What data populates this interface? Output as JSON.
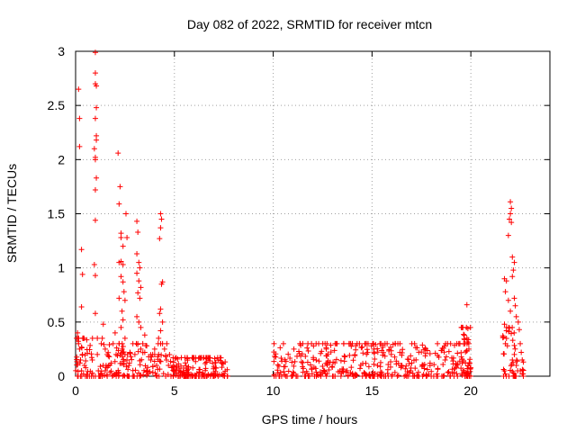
{
  "chart_data": {
    "type": "scatter",
    "title": "Day 082 of 2022, SRMTID for receiver mtcn",
    "xlabel": "GPS time / hours",
    "ylabel": "SRMTID / TECUs",
    "xlim": [
      0,
      24
    ],
    "ylim": [
      0,
      3
    ],
    "xticks": [
      0,
      5,
      10,
      15,
      20
    ],
    "xtick_labels": [
      "0",
      "5",
      "10",
      "15",
      "20"
    ],
    "yticks": [
      0,
      0.5,
      1,
      1.5,
      2,
      2.5,
      3
    ],
    "ytick_labels": [
      "0",
      "0.5",
      "1",
      "1.5",
      "2",
      "2.5",
      "3"
    ],
    "grid": true,
    "marker": "+",
    "series": [
      {
        "name": "SRMTID",
        "color": "#ff0000",
        "points": [
          [
            0.05,
            0.35
          ],
          [
            0.1,
            0.4
          ],
          [
            0.15,
            0.3
          ],
          [
            0.2,
            0.25
          ],
          [
            0.15,
            2.65
          ],
          [
            0.2,
            2.38
          ],
          [
            0.2,
            2.12
          ],
          [
            0.3,
            0.64
          ],
          [
            0.3,
            1.17
          ],
          [
            0.35,
            0.94
          ],
          [
            0.25,
            0.15
          ],
          [
            0.3,
            0.05
          ],
          [
            0.4,
            0.02
          ],
          [
            0.5,
            0.0
          ],
          [
            0.6,
            0.0
          ],
          [
            0.7,
            0.0
          ],
          [
            0.8,
            0.0
          ],
          [
            0.35,
            0.2
          ],
          [
            0.45,
            0.1
          ],
          [
            1.0,
            2.99
          ],
          [
            1.0,
            2.8
          ],
          [
            1.0,
            2.7
          ],
          [
            1.05,
            2.68
          ],
          [
            1.05,
            2.48
          ],
          [
            1.0,
            2.38
          ],
          [
            1.05,
            2.22
          ],
          [
            1.05,
            2.18
          ],
          [
            0.95,
            2.1
          ],
          [
            1.0,
            2.02
          ],
          [
            1.0,
            2.0
          ],
          [
            1.05,
            1.83
          ],
          [
            1.0,
            1.72
          ],
          [
            1.0,
            1.44
          ],
          [
            0.95,
            1.03
          ],
          [
            1.0,
            0.93
          ],
          [
            1.0,
            0.58
          ],
          [
            1.1,
            0.35
          ],
          [
            1.1,
            0.2
          ],
          [
            1.0,
            0.0
          ],
          [
            1.15,
            0.05
          ],
          [
            1.2,
            0.0
          ],
          [
            1.3,
            0.3
          ],
          [
            1.35,
            0.35
          ],
          [
            1.4,
            0.48
          ],
          [
            1.5,
            0.25
          ],
          [
            1.6,
            0.2
          ],
          [
            1.7,
            0.18
          ],
          [
            1.4,
            0.1
          ],
          [
            1.5,
            0.05
          ],
          [
            1.6,
            0.08
          ],
          [
            1.8,
            0.12
          ],
          [
            1.9,
            0.3
          ],
          [
            2.0,
            0.4
          ],
          [
            2.05,
            0.2
          ],
          [
            2.15,
            2.06
          ],
          [
            2.25,
            1.75
          ],
          [
            2.2,
            1.59
          ],
          [
            2.3,
            1.32
          ],
          [
            2.3,
            1.28
          ],
          [
            2.4,
            1.2
          ],
          [
            2.3,
            1.06
          ],
          [
            2.2,
            1.05
          ],
          [
            2.4,
            1.03
          ],
          [
            2.3,
            0.92
          ],
          [
            2.4,
            0.87
          ],
          [
            2.45,
            0.78
          ],
          [
            2.2,
            0.72
          ],
          [
            2.5,
            0.7
          ],
          [
            2.35,
            0.6
          ],
          [
            2.4,
            0.52
          ],
          [
            2.3,
            0.45
          ],
          [
            2.5,
            0.35
          ],
          [
            2.2,
            0.3
          ],
          [
            2.35,
            0.25
          ],
          [
            2.5,
            0.2
          ],
          [
            2.6,
            0.15
          ],
          [
            2.7,
            0.1
          ],
          [
            2.8,
            0.18
          ],
          [
            2.55,
            1.5
          ],
          [
            2.6,
            1.28
          ],
          [
            2.75,
            0.22
          ],
          [
            2.9,
            0.3
          ],
          [
            3.1,
            1.43
          ],
          [
            3.15,
            1.33
          ],
          [
            3.1,
            1.13
          ],
          [
            3.2,
            1.05
          ],
          [
            3.25,
            1.0
          ],
          [
            3.1,
            0.95
          ],
          [
            3.2,
            0.88
          ],
          [
            3.3,
            0.82
          ],
          [
            3.15,
            0.77
          ],
          [
            3.25,
            0.72
          ],
          [
            3.1,
            0.55
          ],
          [
            3.2,
            0.5
          ],
          [
            3.3,
            0.45
          ],
          [
            3.15,
            0.3
          ],
          [
            3.0,
            0.2
          ],
          [
            3.3,
            0.25
          ],
          [
            3.4,
            0.3
          ],
          [
            3.5,
            0.22
          ],
          [
            3.6,
            0.28
          ],
          [
            3.5,
            0.38
          ],
          [
            3.7,
            0.18
          ],
          [
            3.8,
            0.15
          ],
          [
            3.9,
            0.2
          ],
          [
            4.0,
            0.25
          ],
          [
            4.1,
            0.1
          ],
          [
            4.3,
            1.5
          ],
          [
            4.35,
            1.45
          ],
          [
            4.3,
            1.37
          ],
          [
            4.25,
            1.27
          ],
          [
            4.4,
            0.87
          ],
          [
            4.35,
            0.85
          ],
          [
            4.3,
            0.62
          ],
          [
            4.25,
            0.58
          ],
          [
            4.4,
            0.5
          ],
          [
            4.3,
            0.42
          ],
          [
            4.2,
            0.35
          ],
          [
            4.4,
            0.3
          ],
          [
            4.5,
            0.25
          ],
          [
            4.2,
            0.2
          ],
          [
            4.6,
            0.15
          ],
          [
            4.7,
            0.1
          ],
          [
            22.0,
            1.61
          ],
          [
            22.05,
            1.55
          ],
          [
            22.0,
            1.5
          ],
          [
            21.95,
            1.45
          ],
          [
            22.05,
            1.42
          ],
          [
            21.9,
            1.3
          ],
          [
            22.1,
            1.1
          ],
          [
            22.2,
            1.05
          ],
          [
            22.15,
            0.98
          ],
          [
            22.1,
            0.92
          ],
          [
            21.8,
            0.88
          ],
          [
            21.7,
            0.9
          ],
          [
            21.75,
            0.78
          ],
          [
            22.2,
            0.72
          ],
          [
            22.25,
            0.65
          ],
          [
            21.9,
            0.7
          ],
          [
            22.0,
            0.6
          ],
          [
            22.3,
            0.55
          ],
          [
            22.4,
            0.5
          ],
          [
            21.7,
            0.48
          ],
          [
            21.8,
            0.42
          ],
          [
            21.65,
            0.36
          ],
          [
            21.75,
            0.3
          ],
          [
            21.85,
            0.28
          ],
          [
            22.45,
            0.43
          ],
          [
            22.5,
            0.3
          ],
          [
            22.55,
            0.22
          ],
          [
            22.6,
            0.15
          ],
          [
            21.7,
            0.05
          ],
          [
            21.75,
            0.02
          ],
          [
            22.1,
            0.15
          ],
          [
            22.2,
            0.2
          ],
          [
            22.3,
            0.1
          ],
          [
            22.5,
            0.05
          ],
          [
            22.6,
            0.02
          ],
          [
            19.8,
            0.66
          ],
          [
            19.85,
            0.44
          ],
          [
            19.8,
            0.35
          ],
          [
            19.7,
            0.3
          ],
          [
            19.9,
            0.25
          ]
        ]
      }
    ]
  }
}
